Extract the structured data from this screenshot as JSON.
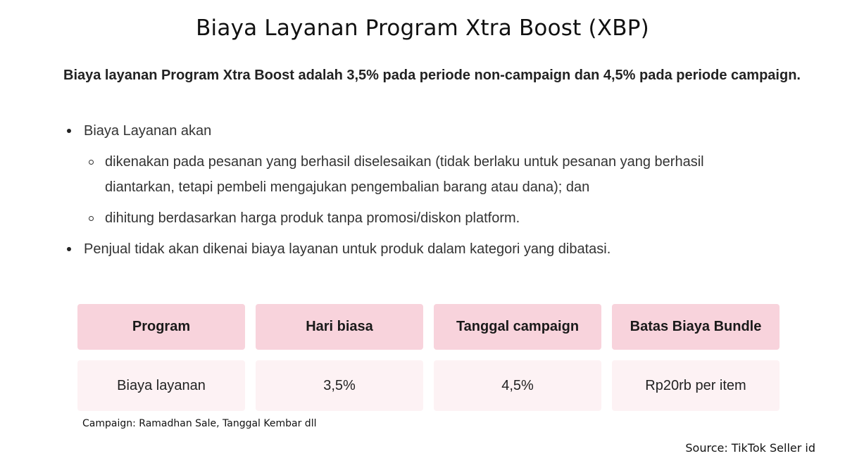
{
  "title": "Biaya Layanan Program Xtra Boost (XBP)",
  "lead": "Biaya layanan Program Xtra Boost adalah 3,5% pada periode non-campaign dan 4,5% pada periode campaign.",
  "bullets": [
    {
      "text": "Biaya Layanan akan",
      "sub": [
        "dikenakan pada pesanan yang berhasil diselesaikan (tidak berlaku untuk pesanan yang berhasil diantarkan, tetapi pembeli mengajukan pengembalian barang atau dana); dan",
        "dihitung berdasarkan harga produk tanpa promosi/diskon platform."
      ]
    },
    {
      "text": "Penjual tidak akan dikenai biaya layanan untuk produk dalam kategori yang dibatasi."
    }
  ],
  "table": {
    "headers": [
      "Program",
      "Hari biasa",
      "Tanggal campaign",
      "Batas Biaya Bundle"
    ],
    "row": [
      "Biaya layanan",
      "3,5%",
      "4,5%",
      "Rp20rb per item"
    ]
  },
  "note": "Campaign: Ramadhan Sale, Tanggal Kembar dll",
  "source": "Source: TikTok Seller id",
  "colors": {
    "header_bg": "#f8d3dc",
    "cell_bg": "#fdf2f4"
  }
}
